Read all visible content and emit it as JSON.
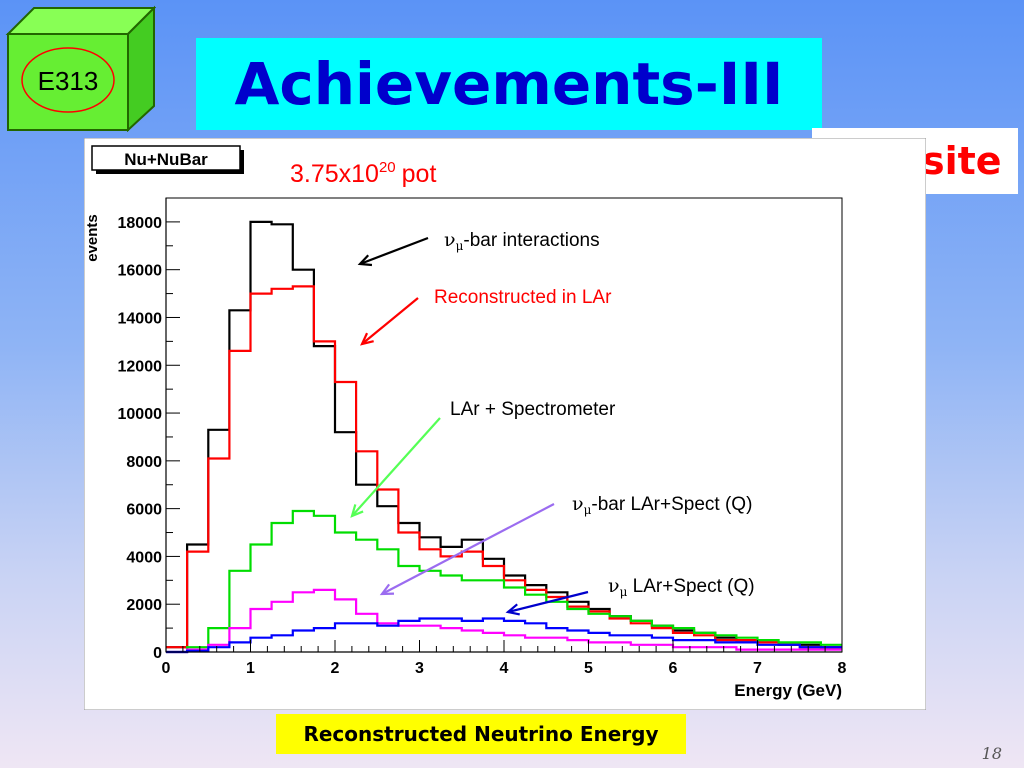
{
  "badge": {
    "label": "E313"
  },
  "slide_title": "Achievements-III",
  "site_label": "FAR site",
  "caption": "Reconstructed Neutrino Energy",
  "page_number": "18",
  "colors": {
    "title_bg": "#00ffff",
    "title_text": "#0000cc",
    "site_text": "#ff0000",
    "caption_bg": "#ffff00",
    "cube_green": "#66ee33"
  },
  "chart_data": {
    "type": "line",
    "title": "Nu+NuBar",
    "pot_label": {
      "base": "3.75x10",
      "exp": "20",
      "unit": "pot"
    },
    "xlabel": "Energy (GeV)",
    "ylabel": "events",
    "xlim": [
      0,
      8
    ],
    "ylim": [
      0,
      19000
    ],
    "xticks": [
      "0",
      "1",
      "2",
      "3",
      "4",
      "5",
      "6",
      "7",
      "8"
    ],
    "yticks": [
      "0",
      "2000",
      "4000",
      "6000",
      "8000",
      "10000",
      "12000",
      "14000",
      "16000",
      "18000"
    ],
    "bin_edges": [
      0,
      0.25,
      0.5,
      0.75,
      1.0,
      1.25,
      1.5,
      1.75,
      2.0,
      2.25,
      2.5,
      2.75,
      3.0,
      3.25,
      3.5,
      3.75,
      4.0,
      4.25,
      4.5,
      4.75,
      5.0,
      5.25,
      5.5,
      5.75,
      6.0,
      6.25,
      6.5,
      6.75,
      7.0,
      7.25,
      7.5,
      7.75,
      8.0
    ],
    "series": [
      {
        "color": "#000000",
        "values": [
          200,
          4500,
          9300,
          14300,
          18000,
          17900,
          16000,
          12800,
          9200,
          7000,
          6100,
          5400,
          4800,
          4400,
          4700,
          3900,
          3200,
          2800,
          2500,
          2100,
          1800,
          1500,
          1300,
          1100,
          900,
          800,
          600,
          500,
          400,
          300,
          300,
          200
        ]
      },
      {
        "color": "#ff0000",
        "values": [
          200,
          4200,
          8100,
          12600,
          15000,
          15200,
          15300,
          13000,
          11300,
          8400,
          6800,
          5000,
          4300,
          4000,
          4200,
          3600,
          3000,
          2600,
          2300,
          1900,
          1700,
          1400,
          1200,
          1000,
          800,
          700,
          500,
          500,
          400,
          300,
          200,
          200
        ]
      },
      {
        "color": "#00dd00",
        "values": [
          0,
          200,
          1000,
          3400,
          4500,
          5400,
          5900,
          5700,
          5000,
          4700,
          4300,
          3600,
          3400,
          3200,
          3000,
          3000,
          2700,
          2400,
          2100,
          1800,
          1600,
          1500,
          1300,
          1100,
          1000,
          800,
          700,
          600,
          500,
          400,
          400,
          300
        ]
      },
      {
        "color": "#ff00ff",
        "values": [
          0,
          100,
          300,
          1000,
          1800,
          2100,
          2500,
          2600,
          2200,
          1600,
          1200,
          1100,
          1100,
          1000,
          900,
          800,
          700,
          600,
          600,
          500,
          400,
          400,
          300,
          300,
          200,
          200,
          200,
          100,
          100,
          100,
          100,
          100
        ]
      },
      {
        "color": "#0000ff",
        "values": [
          0,
          50,
          200,
          400,
          600,
          700,
          900,
          1000,
          1200,
          1200,
          1100,
          1300,
          1400,
          1400,
          1300,
          1400,
          1300,
          1200,
          1000,
          900,
          800,
          700,
          700,
          600,
          500,
          500,
          400,
          400,
          300,
          300,
          200,
          200
        ]
      }
    ],
    "annotations": [
      {
        "prefix": "ν",
        "sub": "μ",
        "text": "-bar interactions",
        "color": "#000000",
        "arrow_color": "#000000"
      },
      {
        "prefix": "",
        "sub": "",
        "text": "Reconstructed in LAr",
        "color": "#ff0000",
        "arrow_color": "#ff0000"
      },
      {
        "prefix": "",
        "sub": "",
        "text": "LAr + Spectrometer",
        "color": "#000000",
        "arrow_color": "#55ff55"
      },
      {
        "prefix": "ν",
        "sub": "μ",
        "text": "-bar LAr+Spect (Q)",
        "color": "#000000",
        "arrow_color": "#9b6cf0"
      },
      {
        "prefix": "ν",
        "sub": "μ",
        "text": " LAr+Spect (Q)",
        "color": "#000000",
        "arrow_color": "#0000cc"
      }
    ]
  }
}
